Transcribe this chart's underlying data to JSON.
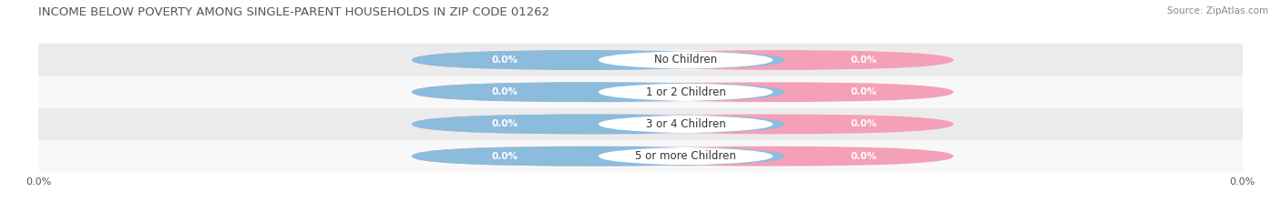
{
  "title": "INCOME BELOW POVERTY AMONG SINGLE-PARENT HOUSEHOLDS IN ZIP CODE 01262",
  "source": "Source: ZipAtlas.com",
  "categories": [
    "No Children",
    "1 or 2 Children",
    "3 or 4 Children",
    "5 or more Children"
  ],
  "single_father_values": [
    0.0,
    0.0,
    0.0,
    0.0
  ],
  "single_mother_values": [
    0.0,
    0.0,
    0.0,
    0.0
  ],
  "father_color": "#8BBCDC",
  "mother_color": "#F4A0B8",
  "title_fontsize": 9.5,
  "source_fontsize": 7.5,
  "label_fontsize": 7.5,
  "category_fontsize": 8.5,
  "figsize": [
    14.06,
    2.33
  ],
  "dpi": 100,
  "background_color": "#FFFFFF",
  "stripe_colors": [
    "#EBEBEB",
    "#F8F8F8"
  ]
}
